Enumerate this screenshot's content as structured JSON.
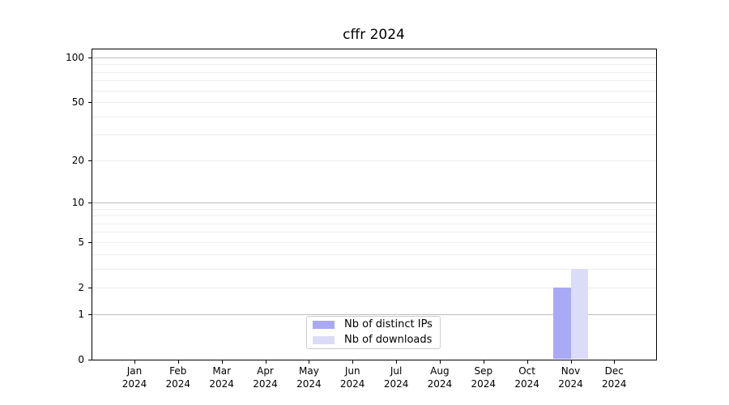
{
  "chart_data": {
    "type": "bar",
    "title": "cffr 2024",
    "categories": [
      "Jan 2024",
      "Feb 2024",
      "Mar 2024",
      "Apr 2024",
      "May 2024",
      "Jun 2024",
      "Jul 2024",
      "Aug 2024",
      "Sep 2024",
      "Oct 2024",
      "Nov 2024",
      "Dec 2024"
    ],
    "series": [
      {
        "name": "Nb of distinct IPs",
        "color": "#a9a9f5",
        "values": [
          0,
          0,
          0,
          0,
          0,
          0,
          0,
          0,
          0,
          0,
          2,
          0
        ]
      },
      {
        "name": "Nb of downloads",
        "color": "#dcdcf8",
        "values": [
          0,
          0,
          0,
          0,
          0,
          0,
          0,
          0,
          0,
          0,
          3,
          0
        ]
      }
    ],
    "xlabel": "",
    "ylabel": "",
    "y_axis": {
      "scale": "log10(1+v)",
      "tick_labels": [
        0,
        1,
        2,
        5,
        10,
        20,
        50,
        100
      ],
      "major_grid_values": [
        1,
        10,
        100
      ],
      "minor_grid_values": [
        2,
        3,
        4,
        5,
        6,
        7,
        8,
        9,
        20,
        30,
        40,
        50,
        60,
        70,
        80,
        90
      ],
      "ylim": [
        0,
        113
      ]
    },
    "grid": "on",
    "legend": {
      "position": "lower center",
      "entries": [
        "Nb of distinct IPs",
        "Nb of downloads"
      ]
    },
    "colors": {
      "grid_major": "#bdbdbd",
      "grid_minor": "#ededed",
      "axis": "#000000",
      "text": "#000000",
      "background": "#ffffff"
    }
  }
}
